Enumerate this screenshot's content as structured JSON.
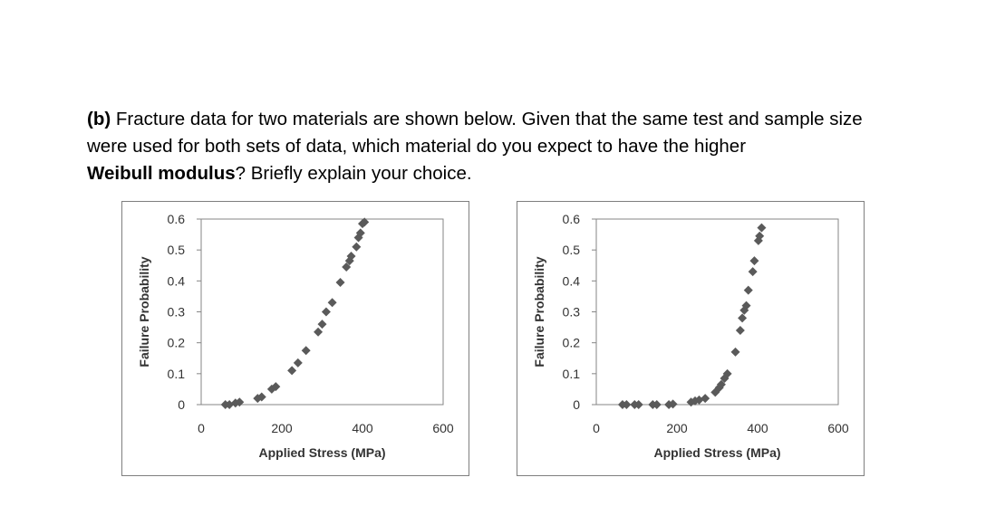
{
  "question": {
    "part_label": "(b)",
    "line1_rest": " Fracture data for two materials are shown below.  Given that the same test and sample size",
    "line2": "were used for both sets of data, which material do you expect to have the higher",
    "line3_bold": "Weibull modulus",
    "line3_rest": "?  Briefly explain your choice."
  },
  "chart_data": [
    {
      "type": "scatter",
      "title": "",
      "xlabel": "Applied Stress (MPa)",
      "ylabel": "Failure Probability",
      "xlim": [
        0,
        600
      ],
      "ylim": [
        0,
        0.6
      ],
      "xticks": [
        "0",
        "200",
        "400",
        "600"
      ],
      "yticks": [
        "0",
        "0.1",
        "0.2",
        "0.3",
        "0.4",
        "0.5",
        "0.6"
      ],
      "marker": "diamond",
      "color": "#5a5a5a",
      "grid": false,
      "legend": "none",
      "points": [
        [
          60,
          0.0
        ],
        [
          70,
          0.0
        ],
        [
          85,
          0.005
        ],
        [
          95,
          0.008
        ],
        [
          140,
          0.02
        ],
        [
          150,
          0.025
        ],
        [
          175,
          0.05
        ],
        [
          185,
          0.058
        ],
        [
          225,
          0.11
        ],
        [
          240,
          0.135
        ],
        [
          260,
          0.175
        ],
        [
          290,
          0.235
        ],
        [
          300,
          0.26
        ],
        [
          310,
          0.3
        ],
        [
          325,
          0.33
        ],
        [
          345,
          0.395
        ],
        [
          360,
          0.445
        ],
        [
          368,
          0.465
        ],
        [
          372,
          0.48
        ],
        [
          385,
          0.51
        ],
        [
          390,
          0.54
        ],
        [
          395,
          0.555
        ],
        [
          400,
          0.585
        ],
        [
          405,
          0.59
        ]
      ]
    },
    {
      "type": "scatter",
      "title": "",
      "xlabel": "Applied Stress (MPa)",
      "ylabel": "Failure Probability",
      "xlim": [
        0,
        600
      ],
      "ylim": [
        0,
        0.6
      ],
      "xticks": [
        "0",
        "200",
        "400",
        "600"
      ],
      "yticks": [
        "0",
        "0.1",
        "0.2",
        "0.3",
        "0.4",
        "0.5",
        "0.6"
      ],
      "marker": "diamond",
      "color": "#5a5a5a",
      "grid": false,
      "legend": "none",
      "points": [
        [
          65,
          0.0
        ],
        [
          75,
          0.0
        ],
        [
          95,
          0.0
        ],
        [
          105,
          0.0
        ],
        [
          140,
          0.0
        ],
        [
          150,
          0.0
        ],
        [
          180,
          0.0
        ],
        [
          190,
          0.002
        ],
        [
          235,
          0.008
        ],
        [
          245,
          0.012
        ],
        [
          255,
          0.015
        ],
        [
          270,
          0.02
        ],
        [
          295,
          0.04
        ],
        [
          305,
          0.055
        ],
        [
          310,
          0.065
        ],
        [
          318,
          0.085
        ],
        [
          325,
          0.1
        ],
        [
          345,
          0.17
        ],
        [
          357,
          0.24
        ],
        [
          362,
          0.28
        ],
        [
          367,
          0.305
        ],
        [
          372,
          0.32
        ],
        [
          377,
          0.37
        ],
        [
          388,
          0.43
        ],
        [
          392,
          0.465
        ],
        [
          402,
          0.53
        ],
        [
          405,
          0.545
        ],
        [
          410,
          0.572
        ]
      ]
    }
  ]
}
